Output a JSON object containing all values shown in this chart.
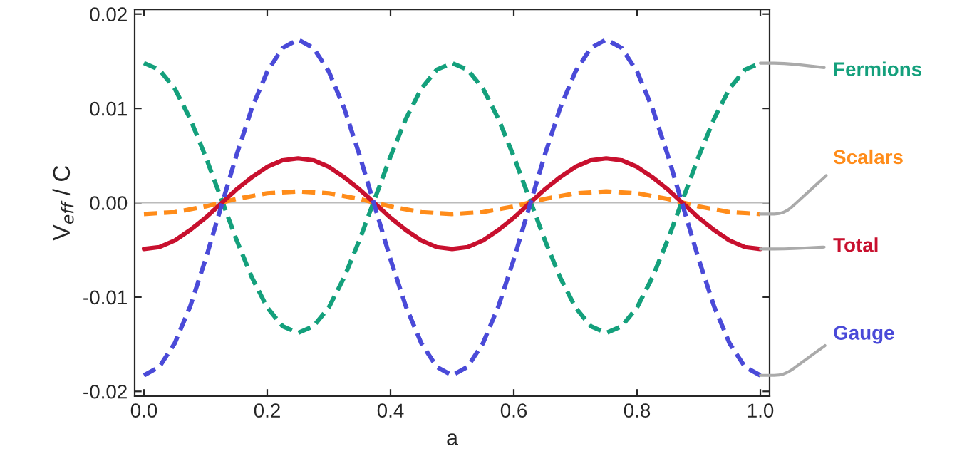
{
  "chart_data": {
    "type": "line",
    "xlabel": "a",
    "ylabel": "V$_{eff}$ / C",
    "x": [
      0,
      0.025,
      0.05,
      0.075,
      0.1,
      0.125,
      0.15,
      0.175,
      0.2,
      0.225,
      0.25,
      0.275,
      0.3,
      0.325,
      0.35,
      0.375,
      0.4,
      0.425,
      0.45,
      0.475,
      0.5,
      0.525,
      0.55,
      0.575,
      0.6,
      0.625,
      0.65,
      0.675,
      0.7,
      0.725,
      0.75,
      0.775,
      0.8,
      0.825,
      0.85,
      0.875,
      0.9,
      0.925,
      0.95,
      0.975,
      1.0
    ],
    "series": [
      {
        "name": "Fermions",
        "color": "#14a07c",
        "line_style": "dashed",
        "values": [
          0.0148,
          0.0141,
          0.0121,
          0.0089,
          0.0049,
          0.0005,
          -0.0039,
          -0.0079,
          -0.0111,
          -0.0131,
          -0.0138,
          -0.0131,
          -0.0111,
          -0.0079,
          -0.0039,
          0.0005,
          0.0049,
          0.0089,
          0.0121,
          0.0141,
          0.0148,
          0.0141,
          0.0121,
          0.0089,
          0.0049,
          0.0005,
          -0.0039,
          -0.0079,
          -0.0111,
          -0.0131,
          -0.0138,
          -0.0131,
          -0.0111,
          -0.0079,
          -0.0039,
          0.0005,
          0.0049,
          0.0089,
          0.0121,
          0.0141,
          0.0148
        ]
      },
      {
        "name": "Scalars",
        "color": "#ff8c1a",
        "line_style": "dashed",
        "values": [
          -0.0012,
          -0.0011,
          -0.001,
          -0.0007,
          -0.0004,
          0,
          0.0004,
          0.0007,
          0.001,
          0.0011,
          0.0012,
          0.0011,
          0.001,
          0.0007,
          0.0004,
          0,
          -0.0004,
          -0.0007,
          -0.001,
          -0.0011,
          -0.0012,
          -0.0011,
          -0.001,
          -0.0007,
          -0.0004,
          0,
          0.0004,
          0.0007,
          0.001,
          0.0011,
          0.0012,
          0.0011,
          0.001,
          0.0007,
          0.0004,
          0,
          -0.0004,
          -0.0007,
          -0.001,
          -0.0011,
          -0.0012
        ]
      },
      {
        "name": "Total",
        "color": "#c8102e",
        "line_style": "solid",
        "values": [
          -0.0049,
          -0.0047,
          -0.004,
          -0.0029,
          -0.0016,
          -0.0001,
          0.0014,
          0.0027,
          0.0038,
          0.0045,
          0.0047,
          0.0045,
          0.0038,
          0.0027,
          0.0014,
          -0.0001,
          -0.0016,
          -0.0029,
          -0.004,
          -0.0047,
          -0.0049,
          -0.0047,
          -0.004,
          -0.0029,
          -0.0016,
          -0.0001,
          0.0014,
          0.0027,
          0.0038,
          0.0045,
          0.0047,
          0.0045,
          0.0038,
          0.0027,
          0.0014,
          -0.0001,
          -0.0016,
          -0.0029,
          -0.004,
          -0.0047,
          -0.0049
        ]
      },
      {
        "name": "Gauge",
        "color": "#4a4ad8",
        "line_style": "dashed",
        "values": [
          -0.0183,
          -0.0174,
          -0.0149,
          -0.011,
          -0.006,
          -0.0005,
          0.005,
          0.01,
          0.0139,
          0.0164,
          0.0173,
          0.0164,
          0.0139,
          0.01,
          0.005,
          -0.0005,
          -0.006,
          -0.011,
          -0.0149,
          -0.0174,
          -0.0183,
          -0.0174,
          -0.0149,
          -0.011,
          -0.006,
          -0.0005,
          0.005,
          0.01,
          0.0139,
          0.0164,
          0.0173,
          0.0164,
          0.0139,
          0.01,
          0.005,
          -0.0005,
          -0.006,
          -0.011,
          -0.0149,
          -0.0174,
          -0.0183
        ]
      }
    ],
    "xlim": [
      -0.015,
      1.015
    ],
    "ylim": [
      -0.0205,
      0.0205
    ],
    "xticks": [
      {
        "value": 0,
        "label": "0.0"
      },
      {
        "value": 0.2,
        "label": "0.2"
      },
      {
        "value": 0.4,
        "label": "0.4"
      },
      {
        "value": 0.6,
        "label": "0.6"
      },
      {
        "value": 0.8,
        "label": "0.8"
      },
      {
        "value": 1.0,
        "label": "1.0"
      }
    ],
    "yticks": [
      {
        "value": -0.02,
        "label": "-0.02"
      },
      {
        "value": -0.01,
        "label": "-0.01"
      },
      {
        "value": 0,
        "label": "0.00"
      },
      {
        "value": 0.01,
        "label": "0.01"
      },
      {
        "value": 0.02,
        "label": "0.02"
      }
    ],
    "ref_lines": [
      {
        "axis": "y",
        "value": 0,
        "color": "#bbbbbb",
        "line_style": "solid"
      }
    ],
    "legend": false,
    "grid": false
  }
}
